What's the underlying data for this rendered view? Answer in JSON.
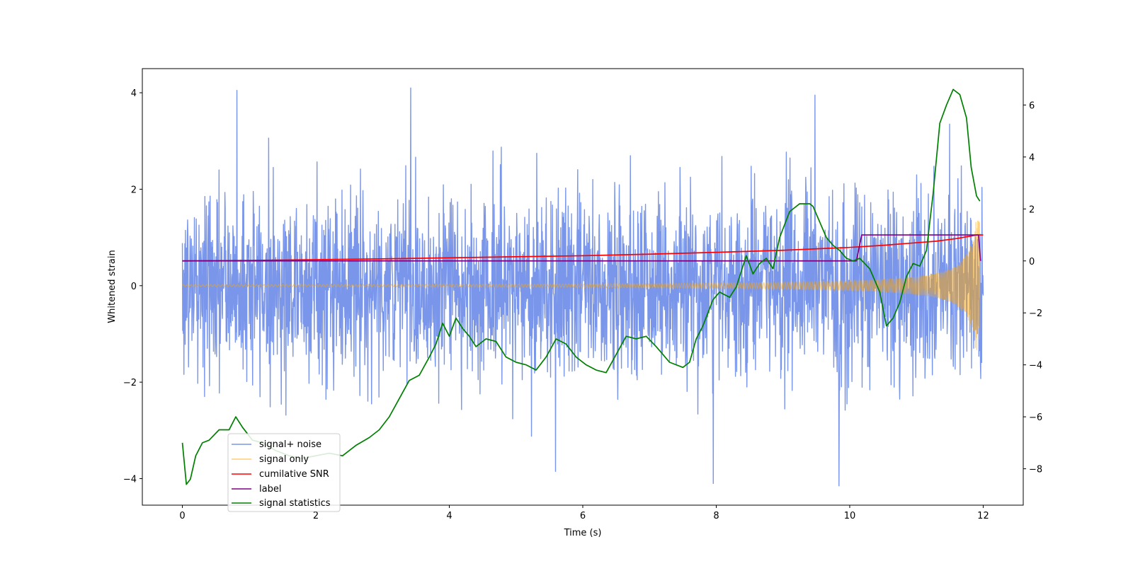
{
  "chart_data": {
    "type": "line",
    "title": "",
    "xlabel": "Time (s)",
    "ylabel": "Whitened strain",
    "xlim": [
      -0.6,
      12.6
    ],
    "ylim": [
      -4.55,
      4.5
    ],
    "y2lim": [
      -9.4,
      7.4
    ],
    "x_ticks": [
      0,
      2,
      4,
      6,
      8,
      10,
      12
    ],
    "x_tick_labels": [
      "0",
      "2",
      "4",
      "6",
      "8",
      "10",
      "12"
    ],
    "y_ticks": [
      -4,
      -2,
      0,
      2,
      4
    ],
    "y_tick_labels": [
      "−4",
      "−2",
      "0",
      "2",
      "4"
    ],
    "y2_ticks": [
      -8,
      -6,
      -4,
      -2,
      0,
      2,
      4,
      6
    ],
    "y2_tick_labels": [
      "−8",
      "−6",
      "−4",
      "−2",
      "0",
      "2",
      "4",
      "6"
    ],
    "grid": false,
    "legend_position": "lower-left",
    "series": [
      {
        "name": "signal+ noise",
        "axis": "left",
        "color": "#4169e1",
        "kind": "noise-band",
        "x_range": [
          0,
          12
        ],
        "noise_sigma": 0.95,
        "peak_values": [
          4.05,
          4.1,
          3.95,
          3.35,
          -3.85,
          -4.1,
          -4.15
        ]
      },
      {
        "name": "signal only",
        "axis": "left",
        "color": "#ffa500",
        "kind": "chirp",
        "x_range": [
          0,
          11.95
        ],
        "amplitude_start": 0.02,
        "amplitude_end": 1.35
      },
      {
        "name": "cumilative SNR",
        "axis": "right",
        "color": "#ff0000",
        "x": [
          0,
          1,
          2,
          3,
          4,
          5,
          6,
          7,
          8,
          9,
          10,
          10.5,
          11,
          11.3,
          11.6,
          11.8,
          11.9,
          12.0
        ],
        "values": [
          0,
          0.02,
          0.05,
          0.08,
          0.12,
          0.16,
          0.2,
          0.26,
          0.33,
          0.41,
          0.52,
          0.6,
          0.7,
          0.76,
          0.86,
          0.95,
          1.0,
          1.0
        ]
      },
      {
        "name": "label",
        "axis": "right",
        "color": "#800080",
        "x": [
          0,
          10.1,
          10.18,
          11.93,
          11.96
        ],
        "values": [
          0,
          0,
          1,
          1,
          0
        ]
      },
      {
        "name": "signal statistics",
        "axis": "right",
        "color": "#008000",
        "x": [
          0,
          0.06,
          0.12,
          0.2,
          0.3,
          0.4,
          0.55,
          0.7,
          0.8,
          0.9,
          1.05,
          1.2,
          1.4,
          1.6,
          1.8,
          2.0,
          2.2,
          2.4,
          2.6,
          2.8,
          2.95,
          3.1,
          3.25,
          3.4,
          3.55,
          3.7,
          3.8,
          3.9,
          4.0,
          4.1,
          4.2,
          4.3,
          4.4,
          4.55,
          4.7,
          4.85,
          5.0,
          5.15,
          5.3,
          5.45,
          5.6,
          5.75,
          5.9,
          6.05,
          6.2,
          6.35,
          6.5,
          6.65,
          6.8,
          6.95,
          7.1,
          7.3,
          7.5,
          7.6,
          7.7,
          7.8,
          7.95,
          8.05,
          8.2,
          8.3,
          8.45,
          8.55,
          8.65,
          8.75,
          8.85,
          8.95,
          9.1,
          9.25,
          9.4,
          9.45,
          9.55,
          9.65,
          9.75,
          9.85,
          9.95,
          10.05,
          10.15,
          10.3,
          10.45,
          10.55,
          10.65,
          10.75,
          10.85,
          10.95,
          11.05,
          11.15,
          11.25,
          11.35,
          11.45,
          11.55,
          11.65,
          11.75,
          11.82,
          11.9,
          11.95
        ],
        "values": [
          -7.0,
          -8.6,
          -8.4,
          -7.5,
          -7.0,
          -6.9,
          -6.5,
          -6.5,
          -6.0,
          -6.4,
          -6.9,
          -7.0,
          -7.3,
          -7.5,
          -7.6,
          -7.5,
          -7.4,
          -7.5,
          -7.1,
          -6.8,
          -6.5,
          -6.0,
          -5.3,
          -4.6,
          -4.4,
          -3.7,
          -3.2,
          -2.4,
          -2.9,
          -2.2,
          -2.6,
          -2.9,
          -3.3,
          -3.0,
          -3.1,
          -3.7,
          -3.9,
          -4.0,
          -4.2,
          -3.7,
          -3.0,
          -3.2,
          -3.7,
          -4.0,
          -4.2,
          -4.3,
          -3.6,
          -2.9,
          -3.0,
          -2.9,
          -3.3,
          -3.9,
          -4.1,
          -3.9,
          -3.0,
          -2.5,
          -1.5,
          -1.2,
          -1.4,
          -1.0,
          0.2,
          -0.5,
          -0.1,
          0.1,
          -0.3,
          0.9,
          1.9,
          2.2,
          2.2,
          2.1,
          1.5,
          0.9,
          0.6,
          0.4,
          0.1,
          0.0,
          0.1,
          -0.3,
          -1.2,
          -2.5,
          -2.2,
          -1.6,
          -0.6,
          -0.1,
          -0.2,
          0.4,
          2.6,
          5.3,
          6.0,
          6.6,
          6.4,
          5.5,
          3.6,
          2.5,
          2.3
        ]
      }
    ]
  }
}
